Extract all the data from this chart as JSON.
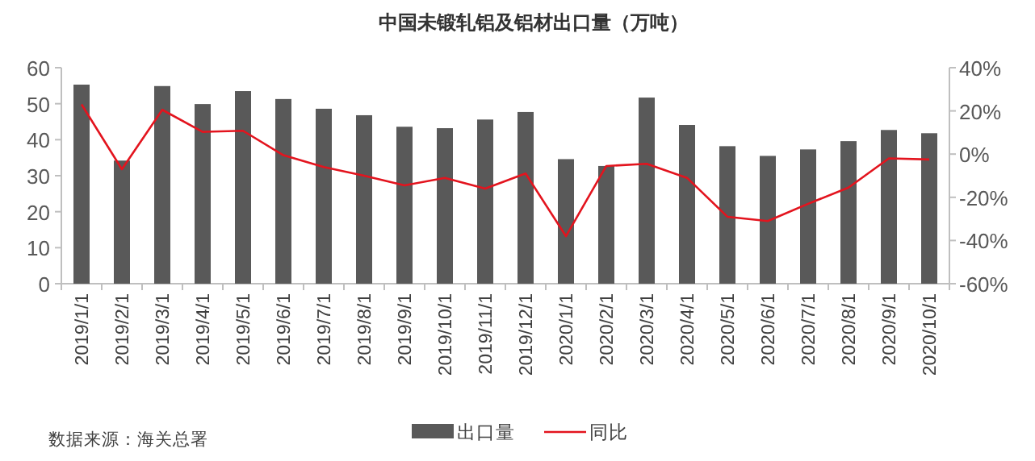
{
  "chart_data": {
    "type": "bar",
    "title": "中国未锻轧铝及铝材出口量（万吨）",
    "categories": [
      "2019/1/1",
      "2019/2/1",
      "2019/3/1",
      "2019/4/1",
      "2019/5/1",
      "2019/6/1",
      "2019/7/1",
      "2019/8/1",
      "2019/9/1",
      "2019/10/1",
      "2019/11/1",
      "2019/12/1",
      "2020/1/1",
      "2020/2/1",
      "2020/3/1",
      "2020/4/1",
      "2020/5/1",
      "2020/6/1",
      "2020/7/1",
      "2020/8/1",
      "2020/9/1",
      "2020/10/1"
    ],
    "series": [
      {
        "name": "出口量",
        "color": "#595959",
        "values": [
          55.3,
          34.2,
          54.9,
          49.9,
          53.5,
          51.3,
          48.6,
          46.8,
          43.6,
          43.2,
          45.6,
          47.7,
          34.6,
          32.7,
          51.7,
          44.1,
          38.2,
          35.5,
          37.3,
          39.6,
          42.7,
          41.8
        ]
      },
      {
        "name": "同比",
        "type": "line",
        "axis": "y2",
        "color": "#e3141e",
        "values": [
          23,
          -7,
          20.5,
          10.3,
          10.8,
          -0.5,
          -6,
          -10,
          -14.5,
          -11,
          -16,
          -9,
          -38,
          -5.5,
          -4.5,
          -11,
          -29,
          -31,
          -23,
          -15.5,
          -2,
          -2.5
        ]
      }
    ],
    "ylim": [
      0,
      60
    ],
    "yticks": [
      0,
      10,
      20,
      30,
      40,
      50,
      60
    ],
    "y2lim": [
      -60,
      40
    ],
    "y2ticks": [
      {
        "value": -60,
        "label": "-60%"
      },
      {
        "value": -40,
        "label": "-40%"
      },
      {
        "value": -20,
        "label": "-20%"
      },
      {
        "value": 0,
        "label": "0%"
      },
      {
        "value": 20,
        "label": "20%"
      },
      {
        "value": 40,
        "label": "40%"
      }
    ],
    "legend": "bottom",
    "annotations": [
      "数据来源：海关总署"
    ]
  }
}
